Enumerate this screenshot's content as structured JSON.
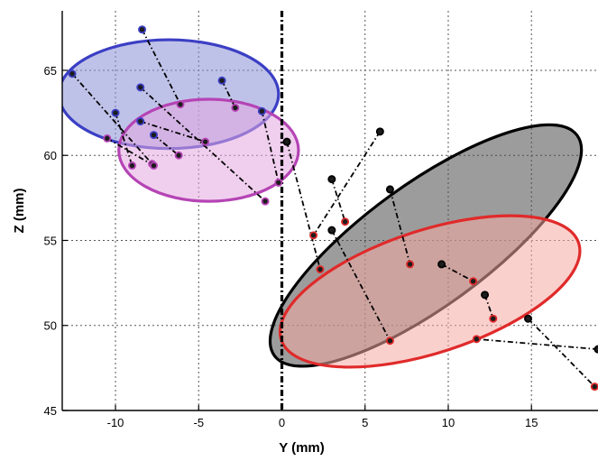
{
  "chart_data": {
    "type": "scatter",
    "title": "",
    "xlabel": "Y (mm)",
    "ylabel": "Z (mm)",
    "xlim": [
      -13.2,
      19
    ],
    "ylim": [
      45,
      68.5
    ],
    "x_ticks": [
      -10,
      -5,
      0,
      5,
      10,
      15
    ],
    "y_ticks": [
      45,
      50,
      55,
      60,
      65
    ],
    "x_tick_labels": [
      "-10",
      "-5",
      "0",
      "5",
      "10",
      "15"
    ],
    "y_tick_labels": [
      "45",
      "50",
      "55",
      "60",
      "65"
    ],
    "grid": true,
    "reference_line_x": 0,
    "ellipses": [
      {
        "color": "blue",
        "stroke": "#3b3fc4",
        "fill": "#8a8fd6",
        "cx": -6.8,
        "cy": 63.6,
        "rx": 6.6,
        "ry": 3.2,
        "angle_deg": 0
      },
      {
        "color": "magenta",
        "stroke": "#b544b5",
        "fill": "#e3a8e0",
        "cx": -4.4,
        "cy": 60.3,
        "rx": 5.4,
        "ry": 3.0,
        "angle_deg": 0
      },
      {
        "color": "black",
        "stroke": "#000000",
        "fill": "#4b4b4b",
        "cx": 8.65,
        "cy": 54.7,
        "rx": 11.25,
        "ry": 3.6,
        "angle_deg": -36
      },
      {
        "color": "red",
        "stroke": "#e02a2a",
        "fill": "#f5a9a3",
        "cx": 8.9,
        "cy": 52.0,
        "rx": 9.4,
        "ry": 3.6,
        "angle_deg": -18
      }
    ],
    "segments": [
      {
        "from": [
          -12.6,
          64.8
        ],
        "to": [
          -7.8,
          59.5
        ],
        "start_color": "blue",
        "end_color": "magenta"
      },
      {
        "from": [
          -8.4,
          67.4
        ],
        "to": [
          -6.1,
          63.0
        ],
        "start_color": "blue",
        "end_color": "magenta"
      },
      {
        "from": [
          -8.5,
          64.0
        ],
        "to": [
          -1.0,
          57.3
        ],
        "start_color": "blue",
        "end_color": "magenta"
      },
      {
        "from": [
          -10.0,
          62.5
        ],
        "to": [
          -9.0,
          59.4
        ],
        "start_color": "blue",
        "end_color": "magenta"
      },
      {
        "from": [
          -8.5,
          62.0
        ],
        "to": [
          -4.6,
          60.8
        ],
        "start_color": "blue",
        "end_color": "magenta"
      },
      {
        "from": [
          -7.7,
          61.2
        ],
        "to": [
          -6.2,
          60.0
        ],
        "start_color": "blue",
        "end_color": "magenta"
      },
      {
        "from": [
          -3.6,
          64.4
        ],
        "to": [
          -2.8,
          62.8
        ],
        "start_color": "blue",
        "end_color": "magenta"
      },
      {
        "from": [
          -1.2,
          62.6
        ],
        "to": [
          -0.2,
          58.4
        ],
        "start_color": "blue",
        "end_color": "magenta"
      },
      {
        "from": [
          5.9,
          61.4
        ],
        "to": [
          1.9,
          55.3
        ],
        "start_color": "black",
        "end_color": "red"
      },
      {
        "from": [
          3.0,
          58.6
        ],
        "to": [
          3.8,
          56.1
        ],
        "start_color": "black",
        "end_color": "red"
      },
      {
        "from": [
          3.0,
          55.6
        ],
        "to": [
          6.5,
          49.1
        ],
        "start_color": "black",
        "end_color": "red"
      },
      {
        "from": [
          6.5,
          58.0
        ],
        "to": [
          7.7,
          53.6
        ],
        "start_color": "black",
        "end_color": "red"
      },
      {
        "from": [
          9.6,
          53.6
        ],
        "to": [
          11.5,
          52.6
        ],
        "start_color": "black",
        "end_color": "red"
      },
      {
        "from": [
          12.2,
          51.8
        ],
        "to": [
          12.7,
          50.4
        ],
        "start_color": "black",
        "end_color": "red"
      },
      {
        "from": [
          14.8,
          50.4
        ],
        "to": [
          18.8,
          46.4
        ],
        "start_color": "black",
        "end_color": "red"
      },
      {
        "from": [
          19.0,
          48.6
        ],
        "to": [
          11.7,
          49.2
        ],
        "start_color": "black",
        "end_color": "red"
      },
      {
        "from": [
          0.3,
          60.8
        ],
        "to": [
          2.3,
          53.3
        ],
        "start_color": "black",
        "end_color": "red"
      },
      {
        "from": [
          -10.5,
          61.0
        ],
        "to": [
          -7.7,
          59.4
        ],
        "start_color": "magenta",
        "end_color": "magenta"
      }
    ]
  }
}
